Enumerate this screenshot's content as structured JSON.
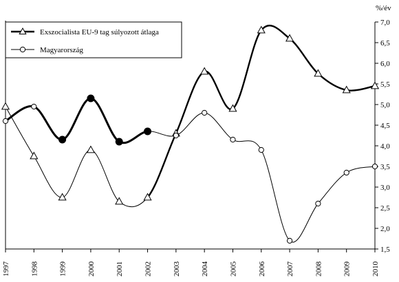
{
  "chart_data": {
    "type": "line",
    "title": "",
    "xlabel": "",
    "ylabel": "%/év",
    "ylim": [
      1.5,
      7.0
    ],
    "grid": false,
    "legend_position": "top-left",
    "categories": [
      "1997",
      "1998",
      "1999",
      "2000",
      "2001",
      "2002",
      "2003",
      "2004",
      "2005",
      "2006",
      "2007",
      "2008",
      "2009",
      "2010"
    ],
    "y_ticks": [
      "1,5",
      "2,0",
      "2,5",
      "3,0",
      "3,5",
      "4,0",
      "4,5",
      "5,0",
      "5,5",
      "6,0",
      "6,5",
      "7,0"
    ],
    "series": [
      {
        "name": "Exszocialista EU-9 tag súlyozott átlaga",
        "color": "#000000",
        "marker": "triangle-open",
        "values": [
          4.95,
          3.75,
          2.75,
          3.9,
          2.65,
          2.75,
          4.3,
          5.8,
          4.9,
          6.8,
          6.6,
          5.75,
          5.35,
          5.45
        ]
      },
      {
        "name": "Magyarország",
        "color": "#000000",
        "marker": "circle-open",
        "values": [
          4.6,
          4.95,
          4.15,
          5.15,
          4.1,
          4.35,
          4.25,
          4.8,
          4.15,
          3.9,
          1.7,
          2.6,
          3.35,
          3.5
        ]
      }
    ],
    "emphasis": {
      "note_series_index": 1,
      "bold_range": [
        0,
        5
      ],
      "filled_marker_indices": [
        2,
        3,
        4,
        5
      ]
    }
  }
}
